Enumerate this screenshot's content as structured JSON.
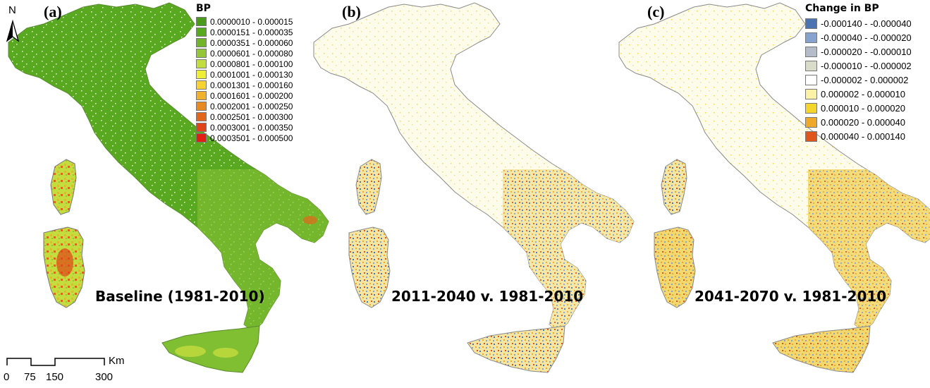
{
  "panels": [
    {
      "letter": "(a)",
      "caption": "Baseline (1981-2010)"
    },
    {
      "letter": "(b)",
      "caption": "2011-2040 v. 1981-2010"
    },
    {
      "letter": "(c)",
      "caption": "2041-2070 v. 1981-2010"
    }
  ],
  "legend_bp": {
    "title": "BP",
    "items": [
      {
        "label": "0.0000010 - 0.000015",
        "color": "#4a9a1c"
      },
      {
        "label": "0.0000151 - 0.000035",
        "color": "#58a820"
      },
      {
        "label": "0.0000351 - 0.000060",
        "color": "#72b42a"
      },
      {
        "label": "0.0000601 - 0.000080",
        "color": "#95c63a"
      },
      {
        "label": "0.0000801 - 0.000100",
        "color": "#c3dc3e"
      },
      {
        "label": "0.0001001 - 0.000130",
        "color": "#eeee34"
      },
      {
        "label": "0.0001301 - 0.000160",
        "color": "#f6d232"
      },
      {
        "label": "0.0001601 - 0.000200",
        "color": "#f0b22c"
      },
      {
        "label": "0.0002001 - 0.000250",
        "color": "#e88a22"
      },
      {
        "label": "0.0002501 - 0.000300",
        "color": "#e2661a"
      },
      {
        "label": "0.0003001 - 0.000350",
        "color": "#e04418"
      },
      {
        "label": "0.0003501 - 0.000500",
        "color": "#e21d12"
      }
    ]
  },
  "legend_change": {
    "title": "Change in BP",
    "items": [
      {
        "label": "-0.000140 - -0.000040",
        "color": "#4c74b2"
      },
      {
        "label": "-0.000040 - -0.000020",
        "color": "#86a2ce"
      },
      {
        "label": "-0.000020 - -0.000010",
        "color": "#b4bcc8"
      },
      {
        "label": "-0.000010 - -0.000002",
        "color": "#d9dcc8"
      },
      {
        "label": "-0.000002 - 0.000002",
        "color": "#ffffff"
      },
      {
        "label": "0.000002 - 0.000010",
        "color": "#fbf2a8"
      },
      {
        "label": "0.000010 - 0.000020",
        "color": "#f4d62a"
      },
      {
        "label": "0.000020 - 0.000040",
        "color": "#eea82a"
      },
      {
        "label": "0.000040 - 0.000140",
        "color": "#e0561a"
      }
    ]
  },
  "north_label": "N",
  "scalebar": {
    "unit": "Km",
    "ticks": [
      "0",
      "75",
      "150",
      "300"
    ]
  },
  "map_colors": {
    "baseline_fill": "#58a820",
    "outline": "#8a8a8a",
    "change_base": "#faf4cc"
  }
}
